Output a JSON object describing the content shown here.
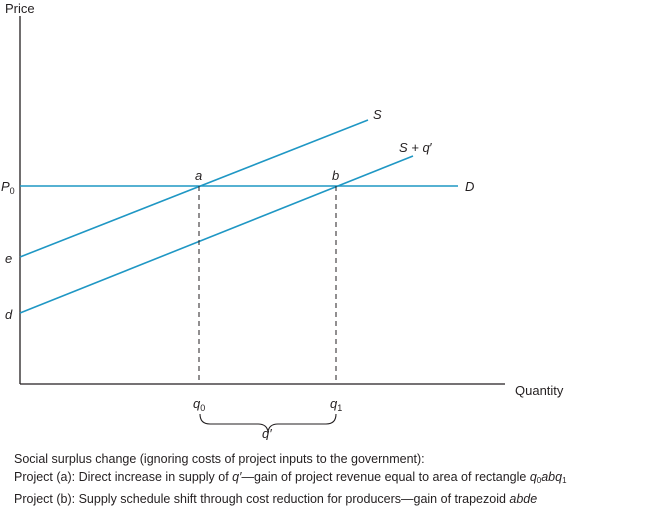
{
  "axes": {
    "y_label": "Price",
    "x_label": "Quantity",
    "color": "#231f20"
  },
  "colors": {
    "curve": "#1f97c4",
    "axis": "#231f20"
  },
  "lines": {
    "supply": "S",
    "supply_shifted_main": "S + q",
    "prime": "′",
    "demand": "D"
  },
  "points": {
    "a": "a",
    "b": "b",
    "e": "e",
    "d": "d",
    "price_P": "P",
    "price_sub": "0"
  },
  "x_ticks": {
    "q": "q",
    "q0_sub": "0",
    "q1_sub": "1",
    "brace_label": "q′"
  },
  "caption": {
    "line1": "Social surplus change (ignoring costs of project inputs to the government):",
    "line2_pre": "Project (a): Direct increase in supply of ",
    "line2_var": "q′",
    "line2_mid": "—gain of project revenue equal to area of rectangle ",
    "line2_q": "q",
    "line2_sub0": "0",
    "line2_abq": "abq",
    "line2_sub1": "1",
    "line3_pre": "Project (b): Supply schedule shift through cost reduction for producers—gain of trapezoid ",
    "line3_var": "abde"
  }
}
